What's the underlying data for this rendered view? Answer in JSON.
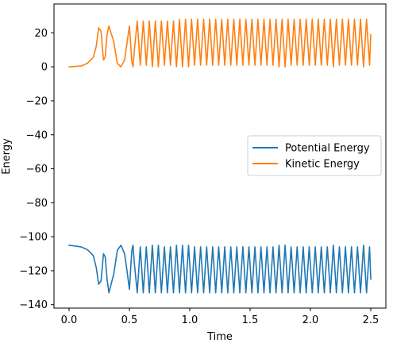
{
  "chart_data": {
    "type": "line",
    "title": "",
    "xlabel": "Time",
    "ylabel": "Energy",
    "xlim": [
      -0.125,
      2.625
    ],
    "ylim": [
      -142,
      37
    ],
    "xticks": [
      0.0,
      0.5,
      1.0,
      1.5,
      2.0,
      2.5
    ],
    "xtick_labels": [
      "0.0",
      "0.5",
      "1.0",
      "1.5",
      "2.0",
      "2.5"
    ],
    "yticks": [
      20,
      0,
      -20,
      -40,
      -60,
      -80,
      -100,
      -120,
      -140
    ],
    "ytick_labels": [
      "20",
      "0",
      "−20",
      "−40",
      "−60",
      "−80",
      "−100",
      "−120",
      "−140"
    ],
    "grid": false,
    "legend_position": "center-right",
    "series": [
      {
        "name": "Potential Energy",
        "color": "#1f77b4",
        "x": [
          0.0,
          0.1,
          0.15,
          0.2,
          0.225,
          0.245,
          0.265,
          0.285,
          0.3,
          0.315,
          0.33,
          0.37,
          0.4,
          0.43,
          0.46,
          0.48,
          0.5,
          0.52,
          0.53,
          0.54,
          0.565,
          0.59,
          0.615,
          0.64,
          0.665,
          0.69,
          0.715,
          0.74,
          0.765,
          0.79,
          0.815,
          0.84,
          0.865,
          0.89,
          0.915,
          0.94,
          0.965,
          0.99,
          1.015,
          1.04,
          1.065,
          1.09,
          1.115,
          1.14,
          1.165,
          1.19,
          1.215,
          1.24,
          1.265,
          1.29,
          1.315,
          1.34,
          1.365,
          1.39,
          1.415,
          1.44,
          1.465,
          1.49,
          1.515,
          1.54,
          1.565,
          1.59,
          1.615,
          1.64,
          1.665,
          1.69,
          1.715,
          1.74,
          1.765,
          1.79,
          1.815,
          1.84,
          1.865,
          1.89,
          1.915,
          1.94,
          1.965,
          1.99,
          2.015,
          2.04,
          2.065,
          2.09,
          2.115,
          2.14,
          2.165,
          2.19,
          2.215,
          2.24,
          2.265,
          2.29,
          2.315,
          2.34,
          2.365,
          2.39,
          2.415,
          2.44,
          2.465,
          2.49,
          2.5
        ],
        "y": [
          -105,
          -106,
          -107.5,
          -111,
          -118,
          -128,
          -126,
          -110,
          -112,
          -125,
          -133,
          -122,
          -108,
          -105,
          -110,
          -120,
          -131,
          -108,
          -105,
          -115,
          -133,
          -106,
          -133,
          -106,
          -133,
          -105,
          -133,
          -105,
          -133,
          -106,
          -133,
          -106,
          -133,
          -105,
          -133,
          -105,
          -133,
          -105,
          -133,
          -106,
          -133,
          -106,
          -133,
          -106,
          -133,
          -106,
          -133,
          -106,
          -133,
          -106,
          -133,
          -106,
          -133,
          -106,
          -133,
          -106,
          -133,
          -106,
          -133,
          -106,
          -133,
          -106,
          -133,
          -106,
          -133,
          -106,
          -133,
          -105,
          -133,
          -105,
          -133,
          -106,
          -133,
          -106,
          -133,
          -106,
          -133,
          -106,
          -133,
          -106,
          -133,
          -106,
          -133,
          -106,
          -133,
          -105,
          -133,
          -106,
          -133,
          -106,
          -133,
          -106,
          -133,
          -106,
          -133,
          -105,
          -133,
          -106,
          -125
        ]
      },
      {
        "name": "Kinetic Energy",
        "color": "#ff7f0e",
        "x": [
          0.0,
          0.1,
          0.15,
          0.2,
          0.225,
          0.245,
          0.265,
          0.285,
          0.3,
          0.315,
          0.33,
          0.37,
          0.4,
          0.43,
          0.46,
          0.48,
          0.5,
          0.52,
          0.53,
          0.54,
          0.565,
          0.59,
          0.615,
          0.64,
          0.665,
          0.69,
          0.715,
          0.74,
          0.765,
          0.79,
          0.815,
          0.84,
          0.865,
          0.89,
          0.915,
          0.94,
          0.965,
          0.99,
          1.015,
          1.04,
          1.065,
          1.09,
          1.115,
          1.14,
          1.165,
          1.19,
          1.215,
          1.24,
          1.265,
          1.29,
          1.315,
          1.34,
          1.365,
          1.39,
          1.415,
          1.44,
          1.465,
          1.49,
          1.515,
          1.54,
          1.565,
          1.59,
          1.615,
          1.64,
          1.665,
          1.69,
          1.715,
          1.74,
          1.765,
          1.79,
          1.815,
          1.84,
          1.865,
          1.89,
          1.915,
          1.94,
          1.965,
          1.99,
          2.015,
          2.04,
          2.065,
          2.09,
          2.115,
          2.14,
          2.165,
          2.19,
          2.215,
          2.24,
          2.265,
          2.29,
          2.315,
          2.34,
          2.365,
          2.39,
          2.415,
          2.44,
          2.465,
          2.49,
          2.5
        ],
        "y": [
          0,
          0.5,
          2,
          5.5,
          12,
          23,
          21,
          4,
          6,
          19,
          24,
          15,
          2,
          0,
          4,
          14,
          24,
          3,
          0,
          9,
          27,
          1,
          27,
          1,
          27,
          0,
          27,
          0,
          27,
          1,
          27,
          1,
          27,
          0,
          28,
          0,
          28,
          0,
          28,
          1,
          28,
          1,
          28,
          1,
          28,
          1,
          28,
          1,
          28,
          1,
          28,
          1,
          28,
          1,
          28,
          1,
          28,
          1,
          28,
          1,
          28,
          1,
          28,
          1,
          28,
          1,
          28,
          0,
          28,
          0,
          28,
          1,
          28,
          1,
          28,
          1,
          28,
          1,
          28,
          1,
          28,
          1,
          28,
          1,
          28,
          0,
          28,
          1,
          28,
          1,
          28,
          1,
          28,
          1,
          28,
          0,
          28,
          1,
          19
        ]
      }
    ]
  }
}
